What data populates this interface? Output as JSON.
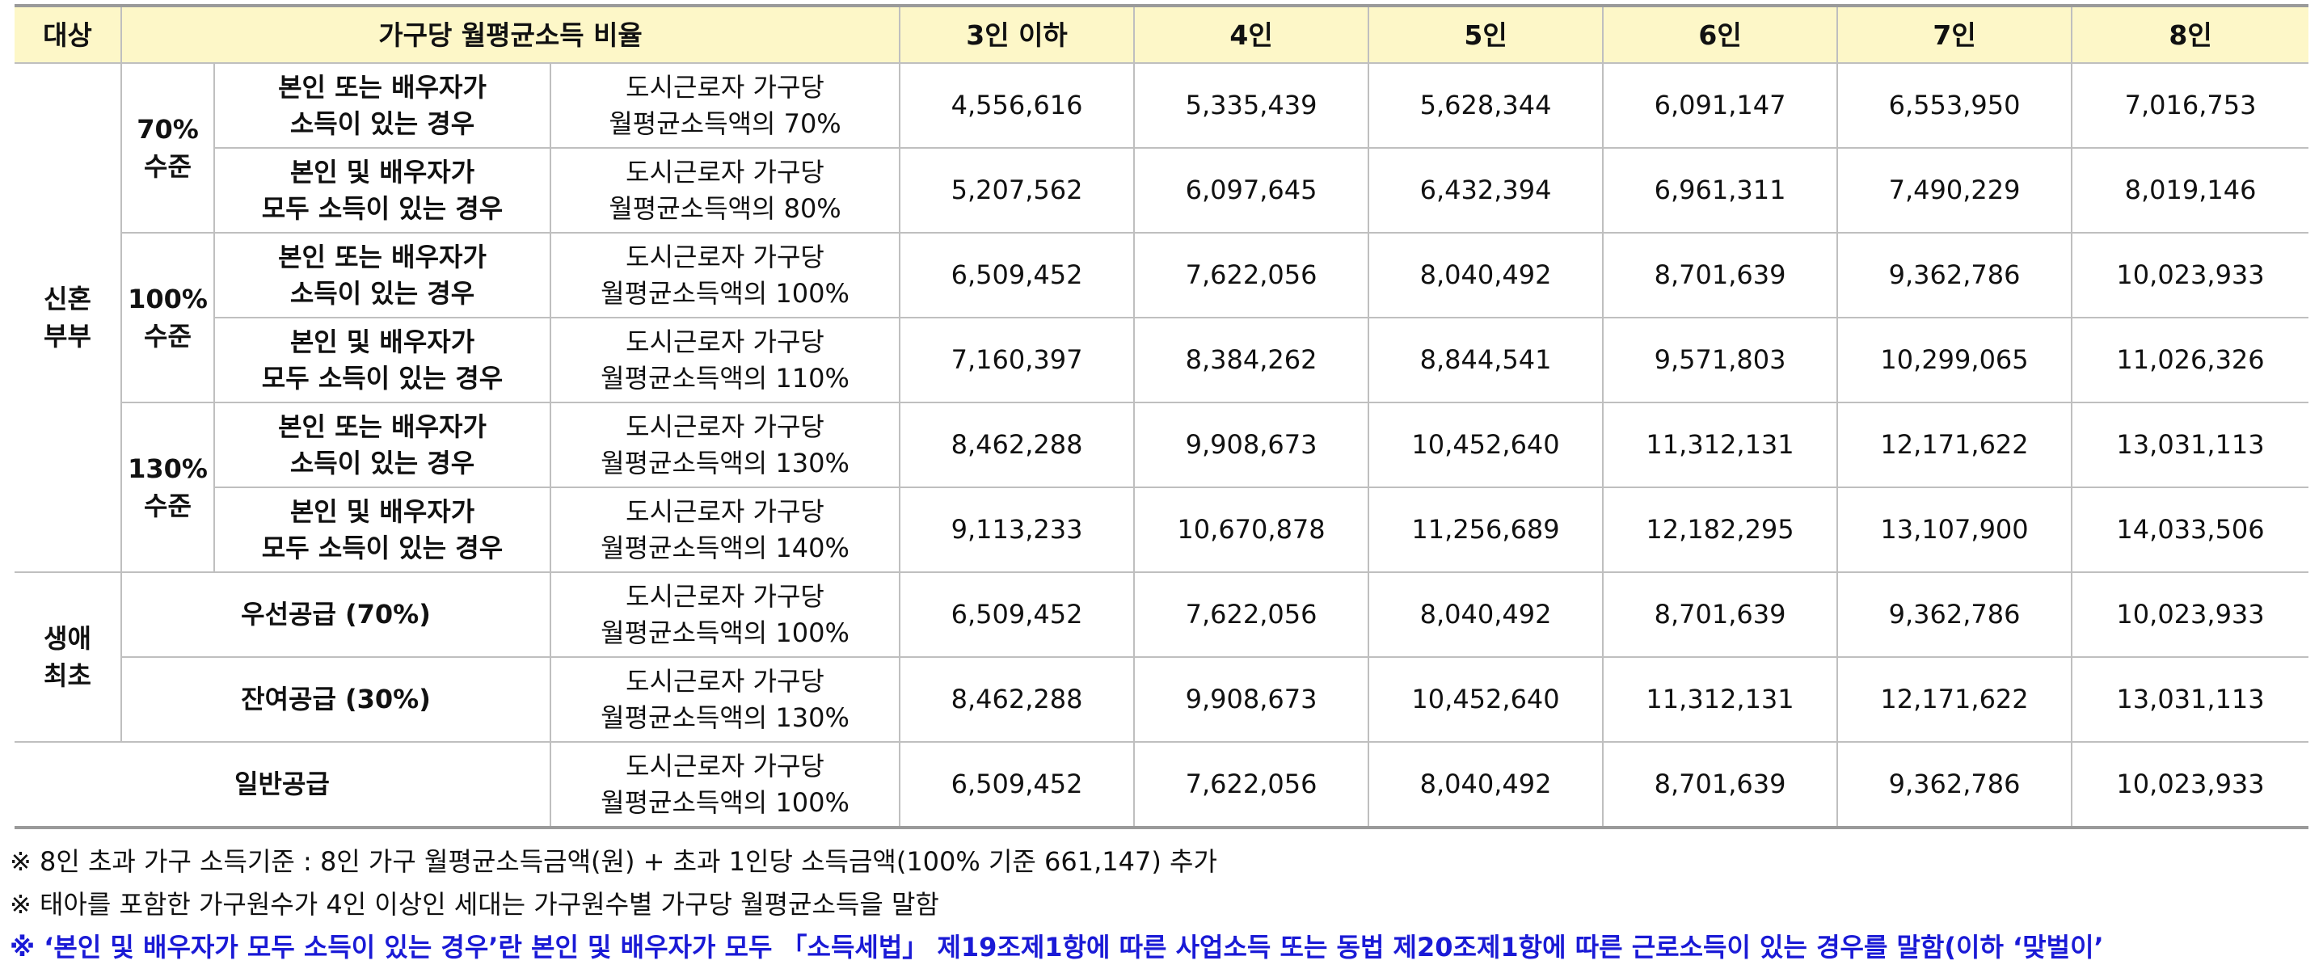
{
  "header": {
    "target": "대상",
    "ratio": "가구당 월평균소득 비율",
    "cols": [
      "3인 이하",
      "4인",
      "5인",
      "6인",
      "7인",
      "8인"
    ]
  },
  "groups": {
    "newlywed": "신혼 부부",
    "firstlife": "생애 최초"
  },
  "levels": [
    "70% 수준",
    "100% 수준",
    "130% 수준"
  ],
  "cond": {
    "single_l1": "본인 또는 배우자가",
    "single_l2": "소득이 있는 경우",
    "both_l1": "본인 및 배우자가",
    "both_l2": "모두 소득이 있는 경우"
  },
  "ratio_prefix": "도시근로자 가구당",
  "ratio_suffix": "월평균소득액의",
  "rows": [
    {
      "pct": "70%",
      "values": [
        "4,556,616",
        "5,335,439",
        "5,628,344",
        "6,091,147",
        "6,553,950",
        "7,016,753"
      ]
    },
    {
      "pct": "80%",
      "values": [
        "5,207,562",
        "6,097,645",
        "6,432,394",
        "6,961,311",
        "7,490,229",
        "8,019,146"
      ]
    },
    {
      "pct": "100%",
      "values": [
        "6,509,452",
        "7,622,056",
        "8,040,492",
        "8,701,639",
        "9,362,786",
        "10,023,933"
      ]
    },
    {
      "pct": "110%",
      "values": [
        "7,160,397",
        "8,384,262",
        "8,844,541",
        "9,571,803",
        "10,299,065",
        "11,026,326"
      ]
    },
    {
      "pct": "130%",
      "values": [
        "8,462,288",
        "9,908,673",
        "10,452,640",
        "11,312,131",
        "12,171,622",
        "13,031,113"
      ]
    },
    {
      "pct": "140%",
      "values": [
        "9,113,233",
        "10,670,878",
        "11,256,689",
        "12,182,295",
        "13,107,900",
        "14,033,506"
      ]
    },
    {
      "label": "우선공급 (70%)",
      "pct": "100%",
      "values": [
        "6,509,452",
        "7,622,056",
        "8,040,492",
        "8,701,639",
        "9,362,786",
        "10,023,933"
      ]
    },
    {
      "label": "잔여공급 (30%)",
      "pct": "130%",
      "values": [
        "8,462,288",
        "9,908,673",
        "10,452,640",
        "11,312,131",
        "12,171,622",
        "13,031,113"
      ]
    },
    {
      "label": "일반공급",
      "pct": "100%",
      "values": [
        "6,509,452",
        "7,622,056",
        "8,040,492",
        "8,701,639",
        "9,362,786",
        "10,023,933"
      ]
    }
  ],
  "notes": [
    "※ 8인 초과 가구 소득기준 : 8인 가구 월평균소득금액(원) + 초과 1인당 소득금액(100% 기준 661,147) 추가",
    "※ 태아를 포함한 가구원수가 4인 이상인 세대는 가구원수별 가구당 월평균소득을 말함",
    "※ ‘본인 및 배우자가 모두 소득이 있는 경우’란 본인 및 배우자가 모두 「소득세법」 제19조제1항에 따른 사업소득 또는 동법 제20조제1항에 따른 근로소득이 있는 경우를 말함(이하 ‘맞벌이’"
  ]
}
